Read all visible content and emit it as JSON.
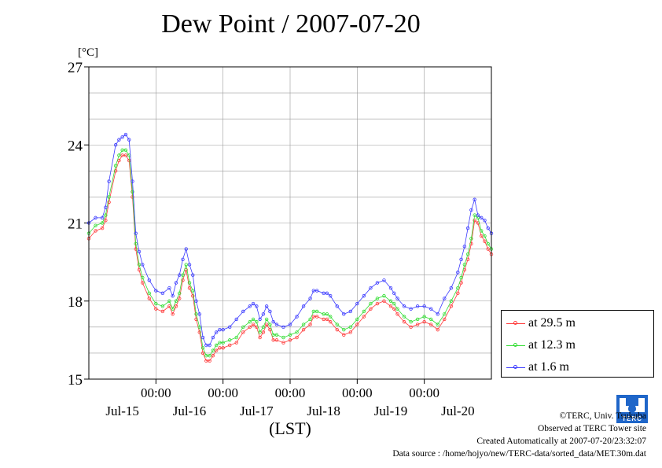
{
  "title": "Dew Point / 2007-07-20",
  "unit_label": "[°C]",
  "xlabel": "(LST)",
  "legend": [
    {
      "label": "at 29.5 m",
      "color": "#ff3b3b"
    },
    {
      "label": "at 12.3 m",
      "color": "#33dd33"
    },
    {
      "label": "at 1.6 m",
      "color": "#3a3aff"
    }
  ],
  "credits": {
    "line1": "©TERC, Univ. Tsukuba",
    "line2": "Observed at TERC Tower site",
    "line3": "Created Automatically at 2007-07-20/23:32:07",
    "line4": "Data source : /home/hojyo/new/TERC-data/sorted_data/MET.30m.dat"
  },
  "logo_text": "TERC",
  "chart_data": {
    "type": "line",
    "title": "Dew Point / 2007-07-20",
    "ylabel": "[°C]",
    "xlabel": "(LST)",
    "ylim": [
      15,
      27
    ],
    "yticks": [
      15,
      18,
      21,
      24,
      27
    ],
    "xlim_days": [
      0,
      6
    ],
    "tick_positions_days": [
      1,
      2,
      3,
      4,
      5
    ],
    "tick_labels": [
      "00:00",
      "00:00",
      "00:00",
      "00:00",
      "00:00"
    ],
    "day_labels": [
      {
        "label": "Jul-15",
        "day": 0.5
      },
      {
        "label": "Jul-16",
        "day": 1.5
      },
      {
        "label": "Jul-17",
        "day": 2.5
      },
      {
        "label": "Jul-18",
        "day": 3.5
      },
      {
        "label": "Jul-19",
        "day": 4.5
      },
      {
        "label": "Jul-20",
        "day": 5.5
      }
    ],
    "grid": true,
    "legend_position": "right",
    "x": [
      0.0,
      0.1,
      0.2,
      0.25,
      0.3,
      0.4,
      0.45,
      0.5,
      0.55,
      0.6,
      0.65,
      0.7,
      0.75,
      0.8,
      0.9,
      1.0,
      1.1,
      1.2,
      1.25,
      1.3,
      1.35,
      1.4,
      1.45,
      1.5,
      1.55,
      1.6,
      1.65,
      1.7,
      1.75,
      1.8,
      1.85,
      1.9,
      1.95,
      2.0,
      2.1,
      2.2,
      2.3,
      2.4,
      2.45,
      2.5,
      2.55,
      2.6,
      2.65,
      2.7,
      2.75,
      2.8,
      2.9,
      3.0,
      3.1,
      3.2,
      3.3,
      3.35,
      3.4,
      3.5,
      3.55,
      3.6,
      3.7,
      3.8,
      3.9,
      4.0,
      4.1,
      4.2,
      4.3,
      4.4,
      4.5,
      4.55,
      4.6,
      4.7,
      4.8,
      4.9,
      5.0,
      5.1,
      5.2,
      5.3,
      5.4,
      5.5,
      5.55,
      5.6,
      5.65,
      5.7,
      5.75,
      5.8,
      5.85,
      5.9,
      5.95,
      6.0
    ],
    "series": [
      {
        "name": "at 29.5 m",
        "values": [
          20.4,
          20.7,
          20.8,
          21.1,
          21.8,
          23.0,
          23.4,
          23.6,
          23.6,
          23.4,
          22.0,
          20.0,
          19.2,
          18.7,
          18.1,
          17.7,
          17.6,
          17.8,
          17.5,
          17.8,
          18.1,
          18.8,
          19.2,
          18.5,
          18.2,
          17.3,
          16.8,
          16.0,
          15.7,
          15.7,
          15.9,
          16.1,
          16.2,
          16.2,
          16.3,
          16.4,
          16.8,
          17.0,
          17.1,
          17.0,
          16.6,
          16.8,
          17.1,
          16.9,
          16.5,
          16.5,
          16.4,
          16.5,
          16.6,
          16.9,
          17.1,
          17.4,
          17.4,
          17.3,
          17.3,
          17.2,
          16.9,
          16.7,
          16.8,
          17.1,
          17.4,
          17.7,
          17.9,
          18.0,
          17.8,
          17.7,
          17.5,
          17.2,
          17.0,
          17.1,
          17.2,
          17.1,
          16.9,
          17.3,
          17.8,
          18.3,
          18.7,
          19.2,
          19.6,
          20.2,
          21.1,
          21.0,
          20.5,
          20.3,
          20.0,
          19.8
        ]
      },
      {
        "name": "at 12.3 m",
        "values": [
          20.6,
          20.9,
          21.0,
          21.3,
          22.0,
          23.2,
          23.6,
          23.8,
          23.8,
          23.6,
          22.2,
          20.2,
          19.4,
          18.9,
          18.3,
          17.9,
          17.8,
          18.0,
          17.7,
          18.0,
          18.3,
          19.0,
          19.4,
          18.7,
          18.4,
          17.5,
          17.0,
          16.2,
          15.9,
          15.9,
          16.1,
          16.3,
          16.4,
          16.4,
          16.5,
          16.6,
          17.0,
          17.2,
          17.3,
          17.2,
          16.8,
          17.0,
          17.3,
          17.1,
          16.7,
          16.7,
          16.6,
          16.7,
          16.8,
          17.1,
          17.3,
          17.6,
          17.6,
          17.5,
          17.5,
          17.4,
          17.1,
          16.9,
          17.0,
          17.3,
          17.6,
          17.9,
          18.1,
          18.2,
          18.0,
          17.9,
          17.7,
          17.4,
          17.2,
          17.3,
          17.4,
          17.3,
          17.1,
          17.5,
          18.0,
          18.5,
          18.9,
          19.4,
          19.8,
          20.4,
          21.3,
          21.2,
          20.7,
          20.5,
          20.2,
          20.0
        ]
      },
      {
        "name": "at 1.6 m",
        "values": [
          21.0,
          21.2,
          21.2,
          21.6,
          22.6,
          24.0,
          24.2,
          24.3,
          24.4,
          24.2,
          22.6,
          20.6,
          19.9,
          19.4,
          18.8,
          18.4,
          18.3,
          18.5,
          18.2,
          18.7,
          19.0,
          19.6,
          20.0,
          19.4,
          19.0,
          18.0,
          17.5,
          16.6,
          16.3,
          16.3,
          16.6,
          16.8,
          16.9,
          16.9,
          17.0,
          17.3,
          17.6,
          17.8,
          17.9,
          17.8,
          17.3,
          17.5,
          17.8,
          17.6,
          17.2,
          17.1,
          17.0,
          17.1,
          17.4,
          17.8,
          18.1,
          18.4,
          18.4,
          18.3,
          18.3,
          18.2,
          17.8,
          17.5,
          17.6,
          17.9,
          18.2,
          18.5,
          18.7,
          18.8,
          18.5,
          18.3,
          18.1,
          17.8,
          17.7,
          17.8,
          17.8,
          17.7,
          17.5,
          18.1,
          18.5,
          19.1,
          19.6,
          20.1,
          20.8,
          21.5,
          21.9,
          21.3,
          21.2,
          21.1,
          20.8,
          20.6
        ]
      }
    ]
  }
}
